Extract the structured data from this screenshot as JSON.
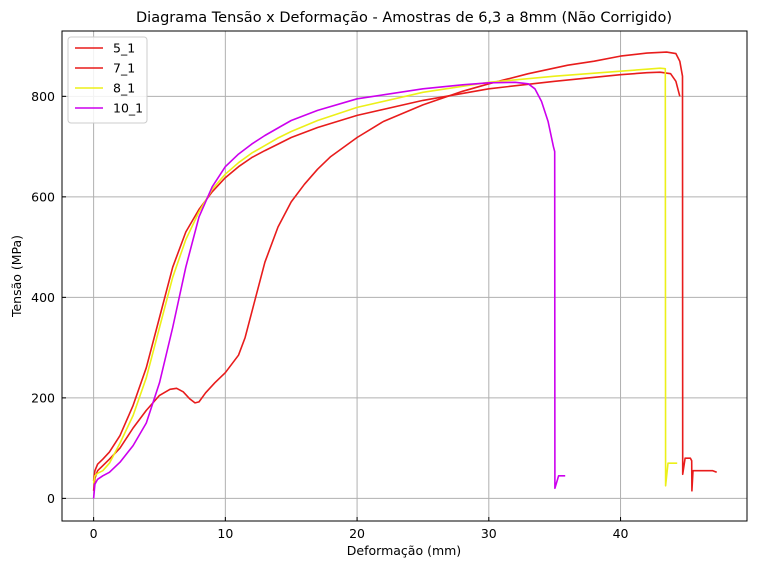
{
  "chart_data": {
    "type": "line",
    "title": "Diagrama Tensão x Deformação - Amostras de 6,3 a 8mm (Não Corrigido)",
    "xlabel": "Deformação (mm)",
    "ylabel": "Tensão (MPa)",
    "xlim": [
      -2.4,
      49.6
    ],
    "ylim": [
      -45,
      930
    ],
    "xticks": [
      0,
      10,
      20,
      30,
      40
    ],
    "yticks": [
      0,
      200,
      400,
      600,
      800
    ],
    "grid": true,
    "legend_position": "top-left",
    "series": [
      {
        "name": "5_1",
        "color": "#e81c1c",
        "x": [
          0,
          0.1,
          0.3,
          0.7,
          1.2,
          2,
          3,
          4,
          5,
          5.8,
          6.3,
          6.8,
          7.3,
          7.7,
          8,
          8.5,
          9.2,
          10,
          11,
          11.5,
          12,
          12.5,
          13,
          14,
          15,
          16,
          17,
          18,
          20,
          22,
          25,
          28,
          30,
          33,
          36,
          38,
          40,
          42,
          43.5,
          44.2,
          44.5,
          44.7,
          44.72,
          44.9,
          45.3,
          45.4,
          45.42,
          45.5,
          46,
          47,
          47.3
        ],
        "y": [
          15,
          40,
          55,
          65,
          78,
          100,
          140,
          175,
          205,
          217,
          219,
          212,
          198,
          190,
          192,
          210,
          230,
          250,
          285,
          320,
          370,
          420,
          470,
          540,
          590,
          625,
          655,
          680,
          718,
          750,
          783,
          810,
          825,
          845,
          862,
          870,
          880,
          886,
          888,
          885,
          870,
          840,
          48,
          80,
          80,
          75,
          15,
          55,
          55,
          55,
          52
        ]
      },
      {
        "name": "7_1",
        "color": "#e81c1c",
        "x": [
          0,
          0.1,
          0.3,
          0.7,
          1.2,
          2,
          3,
          4,
          5,
          6,
          7,
          8,
          9,
          10,
          11,
          12,
          13,
          14,
          15,
          17,
          20,
          25,
          30,
          35,
          40,
          42,
          43,
          43.8,
          44.2,
          44.4,
          44.5
        ],
        "y": [
          35,
          55,
          68,
          78,
          92,
          125,
          185,
          260,
          360,
          460,
          530,
          575,
          610,
          638,
          660,
          678,
          692,
          705,
          718,
          738,
          762,
          792,
          815,
          830,
          843,
          847,
          848,
          845,
          830,
          810,
          800
        ]
      },
      {
        "name": "8_1",
        "color": "#ecf018",
        "x": [
          0,
          0.1,
          0.3,
          0.7,
          1.2,
          2,
          3,
          4,
          5,
          6,
          7,
          8,
          9,
          10,
          11,
          12,
          13,
          14,
          15,
          17,
          20,
          25,
          30,
          35,
          40,
          42,
          43,
          43.4,
          43.42,
          43.6,
          44.3
        ],
        "y": [
          30,
          45,
          50,
          55,
          70,
          110,
          165,
          240,
          340,
          440,
          515,
          570,
          615,
          645,
          668,
          687,
          702,
          717,
          730,
          752,
          778,
          808,
          828,
          840,
          850,
          854,
          856,
          855,
          25,
          70,
          70
        ]
      },
      {
        "name": "10_1",
        "color": "#cc00ee",
        "x": [
          0,
          0.1,
          0.3,
          0.7,
          1.2,
          2,
          3,
          4,
          5,
          6,
          7,
          8,
          9,
          10,
          11,
          12,
          13,
          14,
          15,
          17,
          20,
          25,
          28,
          30,
          32,
          33,
          33.5,
          34,
          34.5,
          34.9,
          35,
          35.02,
          35.3,
          35.8
        ],
        "y": [
          0,
          28,
          38,
          45,
          52,
          72,
          105,
          150,
          230,
          340,
          460,
          560,
          620,
          660,
          685,
          705,
          722,
          737,
          752,
          772,
          795,
          815,
          823,
          827,
          828,
          825,
          815,
          790,
          750,
          700,
          690,
          20,
          45,
          45
        ]
      }
    ]
  }
}
